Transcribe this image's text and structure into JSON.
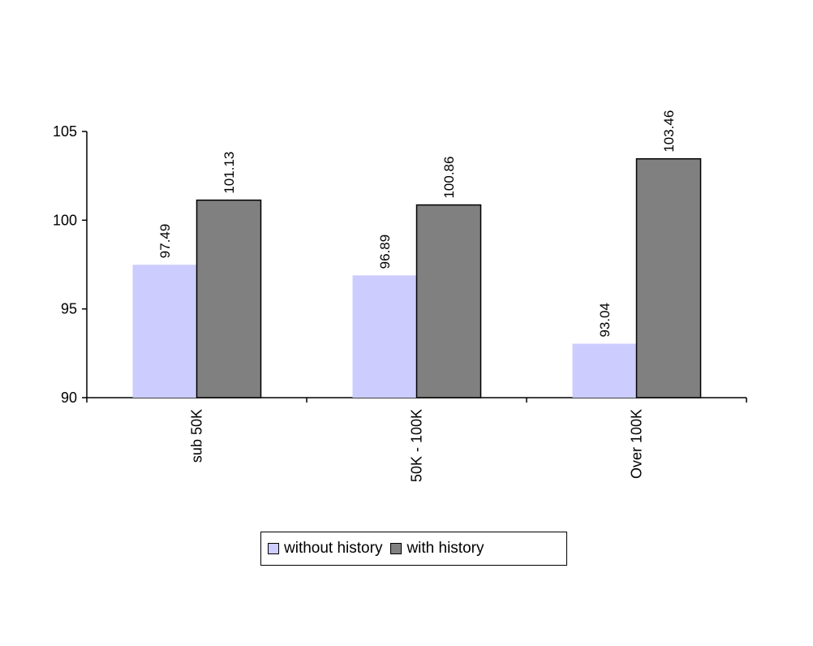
{
  "chart_data": {
    "type": "bar",
    "categories": [
      "sub 50K",
      "50K - 100K",
      "Over 100K"
    ],
    "series": [
      {
        "name": "without history",
        "values": [
          97.49,
          96.89,
          93.04
        ],
        "color": "#ccccff"
      },
      {
        "name": "with history",
        "values": [
          101.13,
          100.86,
          103.46
        ],
        "color": "#808080"
      }
    ],
    "data_labels": [
      [
        "97.49",
        "96.89",
        "93.04"
      ],
      [
        "101.13",
        "100.86",
        "103.46"
      ]
    ],
    "ylim": [
      90,
      105
    ],
    "y_ticks": [
      90,
      95,
      100,
      105
    ],
    "y_tick_labels": [
      "90",
      "95",
      "100",
      "105"
    ],
    "title": "",
    "xlabel": "",
    "ylabel": "",
    "grid": false,
    "legend_position": "bottom"
  }
}
